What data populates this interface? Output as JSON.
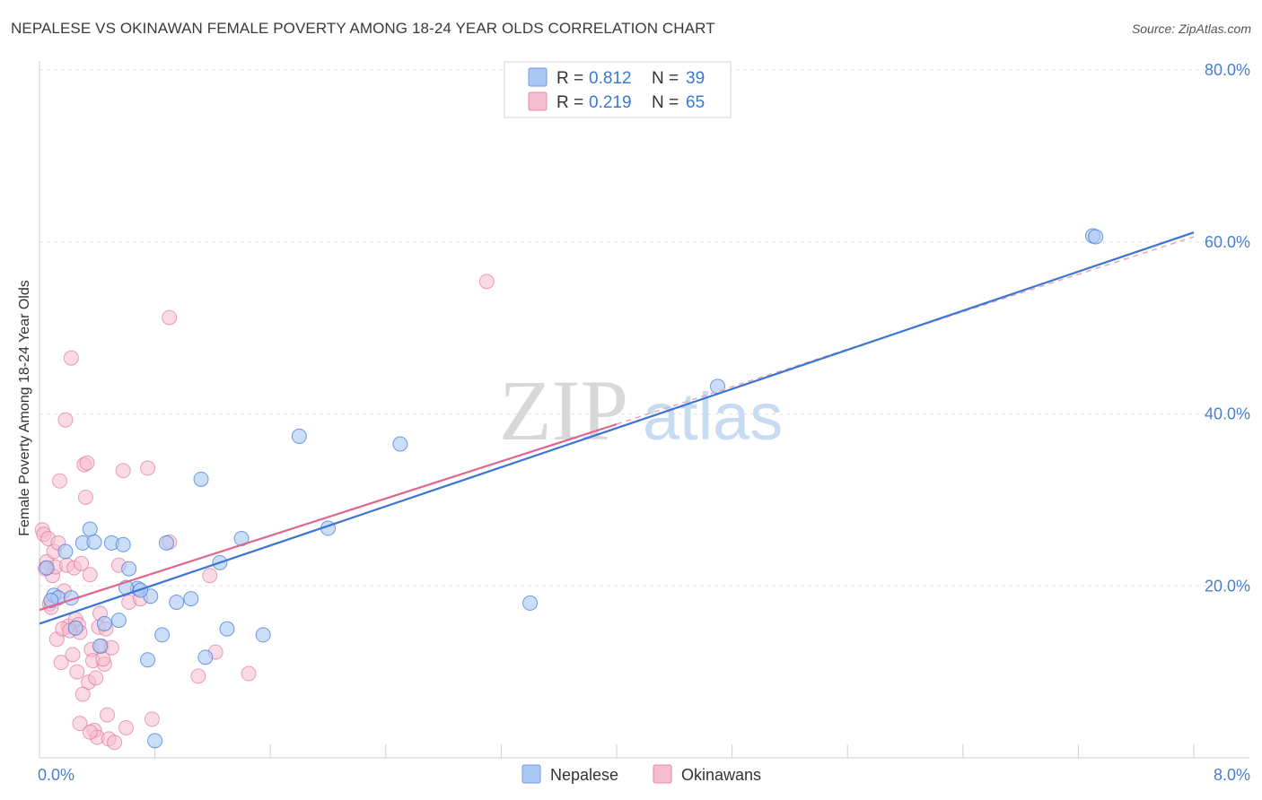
{
  "title": "NEPALESE VS OKINAWAN FEMALE POVERTY AMONG 18-24 YEAR OLDS CORRELATION CHART",
  "source": "Source: ZipAtlas.com",
  "watermark": {
    "zip": "ZIP",
    "atlas": "atlas"
  },
  "colors": {
    "nepalese": "#3a75d6",
    "nepalese_fill": "#a9c8f3",
    "okinawans": "#e0658f",
    "okinawans_fill": "#f6bcd0",
    "axis_text": "#4a7fd0"
  },
  "legend": {
    "r_label": "R =",
    "n_label": "N =",
    "nepalese": {
      "r": "0.812",
      "n": "39"
    },
    "okinawans": {
      "r": "0.219",
      "n": "65"
    }
  },
  "chart_data": {
    "type": "scatter",
    "title": "NEPALESE VS OKINAWAN FEMALE POVERTY AMONG 18-24 YEAR OLDS CORRELATION CHART",
    "xlabel": "",
    "ylabel": "Female Poverty Among 18-24 Year Olds",
    "xlim": [
      0,
      8
    ],
    "ylim": [
      0,
      80
    ],
    "y_ticks": [
      20,
      40,
      60,
      80
    ],
    "y_tick_labels": [
      "20.0%",
      "40.0%",
      "60.0%",
      "80.0%"
    ],
    "x_tick_labels": [
      "0.0%",
      "8.0%"
    ],
    "series": [
      {
        "name": "Nepalese",
        "r": 0.812,
        "n": 39,
        "trend": {
          "x": [
            0,
            8
          ],
          "y": [
            15.6,
            61.1
          ]
        },
        "points": [
          [
            0.05,
            22.1
          ],
          [
            0.1,
            18.9
          ],
          [
            0.13,
            18.6
          ],
          [
            0.18,
            24.0
          ],
          [
            0.22,
            18.6
          ],
          [
            0.25,
            15.1
          ],
          [
            0.3,
            25.0
          ],
          [
            0.35,
            26.6
          ],
          [
            0.38,
            25.1
          ],
          [
            0.45,
            15.6
          ],
          [
            0.55,
            16.0
          ],
          [
            0.5,
            25.0
          ],
          [
            0.58,
            24.8
          ],
          [
            0.62,
            22.0
          ],
          [
            0.68,
            19.7
          ],
          [
            0.75,
            11.4
          ],
          [
            0.77,
            18.8
          ],
          [
            0.85,
            14.3
          ],
          [
            0.88,
            25.0
          ],
          [
            0.95,
            18.1
          ],
          [
            0.7,
            19.5
          ],
          [
            1.05,
            18.5
          ],
          [
            1.12,
            32.4
          ],
          [
            1.15,
            11.7
          ],
          [
            1.25,
            22.7
          ],
          [
            1.3,
            15.0
          ],
          [
            1.4,
            25.5
          ],
          [
            1.55,
            14.3
          ],
          [
            1.8,
            37.4
          ],
          [
            2.0,
            26.7
          ],
          [
            2.5,
            36.5
          ],
          [
            3.4,
            18.0
          ],
          [
            4.7,
            43.2
          ],
          [
            7.3,
            60.7
          ],
          [
            7.32,
            60.6
          ],
          [
            0.08,
            18.3
          ],
          [
            0.6,
            19.8
          ],
          [
            0.42,
            13.0
          ],
          [
            0.8,
            2.0
          ]
        ]
      },
      {
        "name": "Okinawans",
        "r": 0.219,
        "n": 65,
        "trend": {
          "x": [
            0,
            4.0
          ],
          "y": [
            17.2,
            38.8
          ]
        },
        "trend_dashed": {
          "x": [
            4.0,
            8
          ],
          "y": [
            38.8,
            60.6
          ]
        },
        "points": [
          [
            0.02,
            26.5
          ],
          [
            0.03,
            26.0
          ],
          [
            0.05,
            22.8
          ],
          [
            0.06,
            25.5
          ],
          [
            0.07,
            17.9
          ],
          [
            0.09,
            21.2
          ],
          [
            0.1,
            24.0
          ],
          [
            0.11,
            22.2
          ],
          [
            0.12,
            13.8
          ],
          [
            0.14,
            32.2
          ],
          [
            0.15,
            11.1
          ],
          [
            0.17,
            19.4
          ],
          [
            0.18,
            39.3
          ],
          [
            0.19,
            22.4
          ],
          [
            0.2,
            15.3
          ],
          [
            0.22,
            46.5
          ],
          [
            0.24,
            22.1
          ],
          [
            0.25,
            16.1
          ],
          [
            0.26,
            10.0
          ],
          [
            0.27,
            15.5
          ],
          [
            0.28,
            14.6
          ],
          [
            0.29,
            22.6
          ],
          [
            0.3,
            7.4
          ],
          [
            0.31,
            34.1
          ],
          [
            0.32,
            30.3
          ],
          [
            0.33,
            34.3
          ],
          [
            0.34,
            8.8
          ],
          [
            0.35,
            21.3
          ],
          [
            0.36,
            12.6
          ],
          [
            0.37,
            11.3
          ],
          [
            0.38,
            3.2
          ],
          [
            0.39,
            9.3
          ],
          [
            0.4,
            2.4
          ],
          [
            0.42,
            16.8
          ],
          [
            0.43,
            13.0
          ],
          [
            0.45,
            10.9
          ],
          [
            0.47,
            5.0
          ],
          [
            0.48,
            2.2
          ],
          [
            0.5,
            12.8
          ],
          [
            0.52,
            1.8
          ],
          [
            0.55,
            22.4
          ],
          [
            0.58,
            33.4
          ],
          [
            0.6,
            3.5
          ],
          [
            0.62,
            18.1
          ],
          [
            0.7,
            18.5
          ],
          [
            0.75,
            33.7
          ],
          [
            0.78,
            4.5
          ],
          [
            0.9,
            51.2
          ],
          [
            0.9,
            25.1
          ],
          [
            1.1,
            9.5
          ],
          [
            1.18,
            21.2
          ],
          [
            1.22,
            12.3
          ],
          [
            1.45,
            9.8
          ],
          [
            3.1,
            55.4
          ],
          [
            0.08,
            17.5
          ],
          [
            0.16,
            15.0
          ],
          [
            0.21,
            14.8
          ],
          [
            0.23,
            12.0
          ],
          [
            0.41,
            15.2
          ],
          [
            0.44,
            11.5
          ],
          [
            0.46,
            15.0
          ],
          [
            0.35,
            3.0
          ],
          [
            0.28,
            4.0
          ],
          [
            0.13,
            25.0
          ],
          [
            0.04,
            22.0
          ]
        ]
      }
    ]
  },
  "bottom_legend": {
    "nepalese": "Nepalese",
    "okinawans": "Okinawans"
  }
}
